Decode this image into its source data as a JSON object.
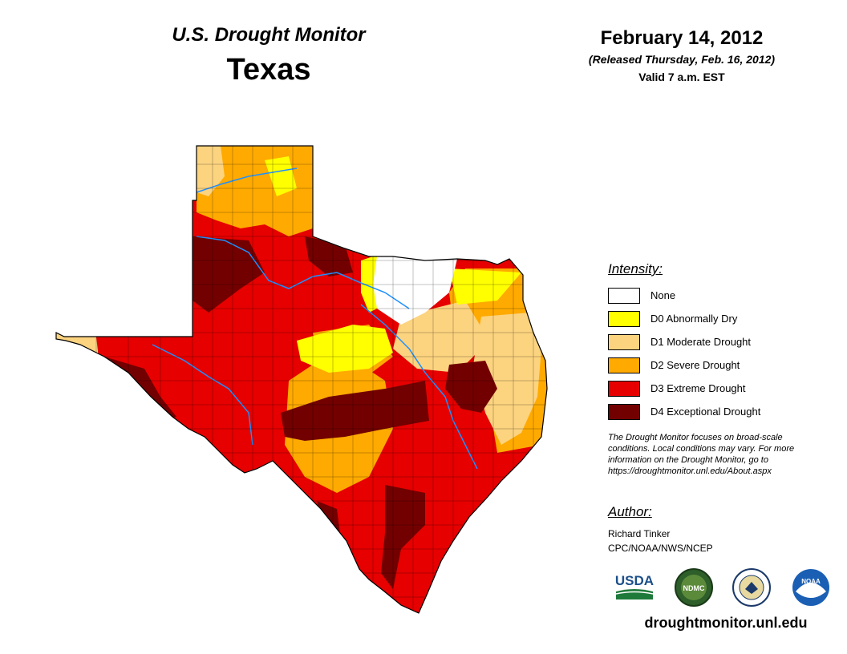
{
  "header": {
    "title": "U.S. Drought Monitor",
    "region": "Texas",
    "date": "February 14, 2012",
    "released": "(Released Thursday, Feb. 16, 2012)",
    "valid": "Valid 7 a.m. EST"
  },
  "legend": {
    "title": "Intensity:",
    "items": [
      {
        "label": "None",
        "color": "#ffffff"
      },
      {
        "label": "D0 Abnormally Dry",
        "color": "#ffff00"
      },
      {
        "label": "D1 Moderate Drought",
        "color": "#fcd37f"
      },
      {
        "label": "D2 Severe Drought",
        "color": "#ffaa00"
      },
      {
        "label": "D3 Extreme Drought",
        "color": "#e60000"
      },
      {
        "label": "D4 Exceptional Drought",
        "color": "#730000"
      }
    ]
  },
  "note": {
    "line1": "The Drought Monitor focuses on broad-scale",
    "line2": "conditions. Local conditions may vary. For more",
    "line3": "information on the Drought Monitor, go to",
    "line4": "https://droughtmonitor.unl.edu/About.aspx"
  },
  "author": {
    "title": "Author:",
    "name": "Richard Tinker",
    "org": "CPC/NOAA/NWS/NCEP"
  },
  "logos": {
    "usda": "USDA",
    "ndmc": "NDMC",
    "noaa": "NOAA"
  },
  "footer": {
    "url": "droughtmonitor.unl.edu"
  }
}
